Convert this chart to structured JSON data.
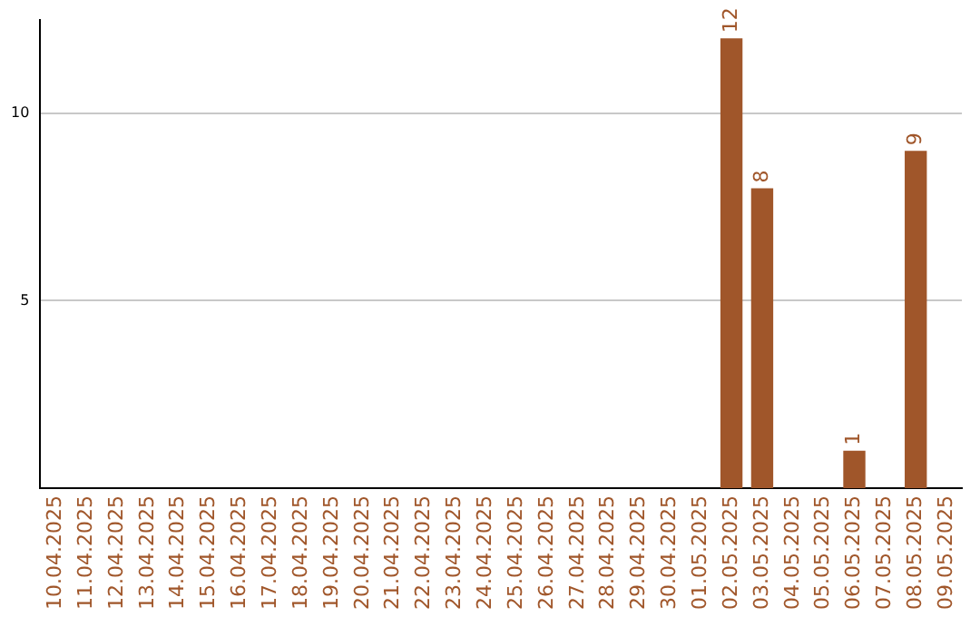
{
  "chart_data": {
    "type": "bar",
    "categories": [
      "10.04.2025",
      "11.04.2025",
      "12.04.2025",
      "13.04.2025",
      "14.04.2025",
      "15.04.2025",
      "16.04.2025",
      "17.04.2025",
      "18.04.2025",
      "19.04.2025",
      "20.04.2025",
      "21.04.2025",
      "22.04.2025",
      "23.04.2025",
      "24.04.2025",
      "25.04.2025",
      "26.04.2025",
      "27.04.2025",
      "28.04.2025",
      "29.04.2025",
      "30.04.2025",
      "01.05.2025",
      "02.05.2025",
      "03.05.2025",
      "04.05.2025",
      "05.05.2025",
      "06.05.2025",
      "07.05.2025",
      "08.05.2025",
      "09.05.2025"
    ],
    "values": [
      0,
      0,
      0,
      0,
      0,
      0,
      0,
      0,
      0,
      0,
      0,
      0,
      0,
      0,
      0,
      0,
      0,
      0,
      0,
      0,
      0,
      0,
      12,
      8,
      0,
      0,
      1,
      0,
      9,
      0
    ],
    "value_labels": [
      null,
      null,
      null,
      null,
      null,
      null,
      null,
      null,
      null,
      null,
      null,
      null,
      null,
      null,
      null,
      null,
      null,
      null,
      null,
      null,
      null,
      null,
      "12",
      "8",
      null,
      null,
      "1",
      null,
      "9",
      null
    ],
    "color": "#a0562a",
    "ylim": [
      0,
      12.5
    ],
    "yticks": [
      5,
      10
    ],
    "grid": "y",
    "legend": false
  }
}
